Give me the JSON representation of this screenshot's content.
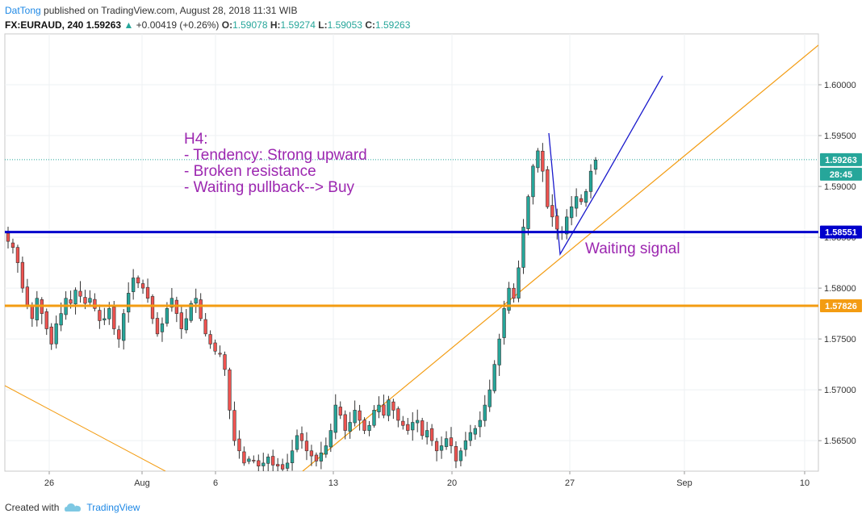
{
  "header": {
    "author": "DatTong",
    "published": "published on TradingView.com, August 28, 2018 11:31 WIB",
    "symbol": "FX:EURAUD, 240",
    "last": "1.59263",
    "change": "+0.00419 (+0.26%)",
    "o_label": "O:",
    "o": "1.59078",
    "h_label": "H:",
    "h": "1.59274",
    "l_label": "L:",
    "l": "1.59053",
    "c_label": "C:",
    "c": "1.59263"
  },
  "footer": {
    "created_with": "Created with",
    "brand": "TradingView"
  },
  "colors": {
    "up": "#26a69a",
    "down": "#ef5350",
    "blue_line": "#0000cc",
    "orange_line": "#f39c12",
    "annotation": "#9c27b0"
  },
  "chart_data": {
    "type": "candlestick",
    "ylim": [
      1.562,
      1.605
    ],
    "y_ticks": [
      "1.56500",
      "1.57000",
      "1.57500",
      "1.58000",
      "1.58500",
      "1.59000",
      "1.59500",
      "1.60000"
    ],
    "x_ticks": [
      "26",
      "Aug",
      "6",
      "13",
      "20",
      "27",
      "Sep",
      "10"
    ],
    "price_labels": {
      "last": "1.59263",
      "countdown": "28:45",
      "resistance": "1.58551",
      "support": "1.57826"
    },
    "horizontal_lines": [
      {
        "name": "broken-resistance",
        "value": 1.58551,
        "color": "#0000cc"
      },
      {
        "name": "support",
        "value": 1.57826,
        "color": "#f39c12"
      }
    ],
    "annotations": [
      "H4:",
      "- Tendency: Strong upward",
      "- Broken resistance",
      "- Waiting pullback--> Buy",
      "Waiting signal"
    ],
    "close_path": [
      1.5846,
      1.584,
      1.5825,
      1.58,
      1.5782,
      1.577,
      1.579,
      1.5775,
      1.576,
      1.5745,
      1.5765,
      1.5775,
      1.579,
      1.5785,
      1.5798,
      1.5792,
      1.5785,
      1.579,
      1.578,
      1.5768,
      1.577,
      1.578,
      1.576,
      1.575,
      1.5775,
      1.5795,
      1.581,
      1.5805,
      1.58,
      1.579,
      1.577,
      1.5755,
      1.5765,
      1.578,
      1.579,
      1.5775,
      1.576,
      1.577,
      1.5785,
      1.579,
      1.577,
      1.5755,
      1.5745,
      1.5738,
      1.5735,
      1.572,
      1.568,
      1.565,
      1.564,
      1.5628,
      1.5632,
      1.563,
      1.5625,
      1.5628,
      1.5634,
      1.5626,
      1.5625,
      1.5622,
      1.5628,
      1.564,
      1.5655,
      1.565,
      1.564,
      1.5635,
      1.563,
      1.5638,
      1.5645,
      1.566,
      1.5685,
      1.5675,
      1.566,
      1.5668,
      1.568,
      1.567,
      1.566,
      1.5665,
      1.568,
      1.5685,
      1.5675,
      1.569,
      1.568,
      1.567,
      1.5665,
      1.566,
      1.5668,
      1.567,
      1.5655,
      1.566,
      1.565,
      1.564,
      1.5645,
      1.5652,
      1.5645,
      1.563,
      1.564,
      1.565,
      1.5658,
      1.5662,
      1.567,
      1.5685,
      1.57,
      1.5725,
      1.575,
      1.578,
      1.58,
      1.579,
      1.582,
      1.586,
      1.589,
      1.592,
      1.5935,
      1.5915,
      1.588,
      1.587,
      1.5858,
      1.5855,
      1.587,
      1.588,
      1.589,
      1.5885,
      1.5895,
      1.5915,
      1.5926
    ]
  }
}
